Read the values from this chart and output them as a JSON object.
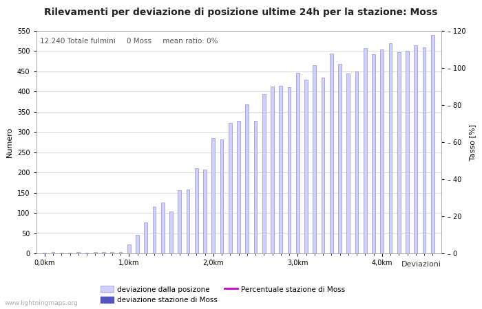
{
  "title": "Rilevamenti per deviazione di posizione ultime 24h per la stazione: Moss",
  "subtitle": "12.240 Totale fulmini     0 Moss     mean ratio: 0%",
  "xlabel": "Deviazioni",
  "ylabel_left": "Numero",
  "ylabel_right": "Tasso [%]",
  "watermark": "www.lightningmaps.org",
  "ylim_left": [
    0,
    550
  ],
  "ylim_right": [
    0,
    120
  ],
  "yticks_left": [
    0,
    50,
    100,
    150,
    200,
    250,
    300,
    350,
    400,
    450,
    500,
    550
  ],
  "yticks_right_major": [
    0,
    20,
    40,
    60,
    80,
    100,
    120
  ],
  "yticks_right_minor": [
    10,
    30,
    50,
    70,
    90,
    110
  ],
  "bar_values": [
    2,
    3,
    2,
    2,
    3,
    2,
    3,
    3,
    4,
    3,
    22,
    46,
    76,
    116,
    125,
    104,
    157,
    158,
    210,
    207,
    285,
    282,
    323,
    327,
    368,
    328,
    393,
    413,
    415,
    410,
    446,
    430,
    465,
    435,
    494,
    468,
    445,
    450,
    507,
    493,
    505,
    520,
    497,
    500,
    515,
    510,
    540
  ],
  "bar_color": "#d0d0ff",
  "bar_edge_color": "#9090c0",
  "station_bar_color": "#5555bb",
  "ratio_color": "#cc00cc",
  "background_color": "#ffffff",
  "plot_bg_color": "#ffffff",
  "grid_color": "#cccccc",
  "title_fontsize": 10,
  "subtitle_fontsize": 7.5,
  "axis_label_fontsize": 8,
  "tick_fontsize": 7,
  "legend_fontsize": 7.5,
  "n_bars": 47
}
